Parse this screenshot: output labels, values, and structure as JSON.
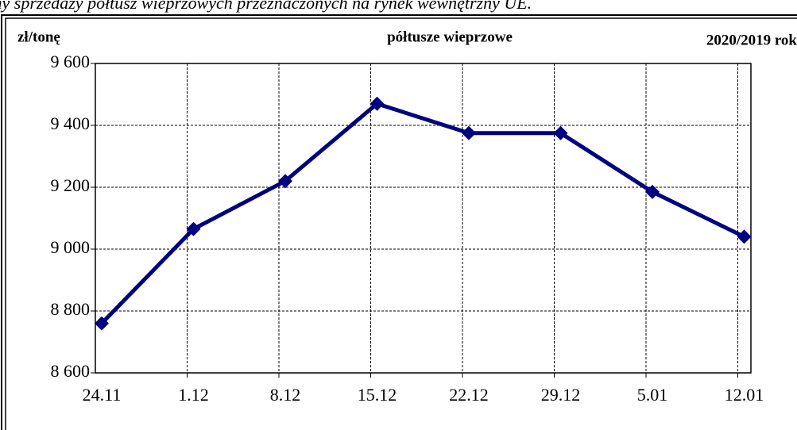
{
  "chart_data": {
    "type": "line",
    "caption": "ceny sprzedaży półtusz wieprzowych przeznaczonych na rynek wewnętrzny UE.",
    "y_label": "zł/tonę",
    "title": "półtusze  wieprzowe",
    "period": "2020/2019 rok",
    "categories": [
      "24.11",
      "1.12",
      "8.12",
      "15.12",
      "22.12",
      "29.12",
      "5.01",
      "12.01"
    ],
    "series": [
      {
        "name": "półtusze wieprzowe",
        "color": "#000080",
        "values": [
          8760,
          9065,
          9220,
          9470,
          9375,
          9375,
          9185,
          9040
        ]
      }
    ],
    "ylim": [
      8600,
      9600
    ],
    "yticks": [
      {
        "value": 8600,
        "label": "8 600"
      },
      {
        "value": 8800,
        "label": "8 800"
      },
      {
        "value": 9000,
        "label": "9 000"
      },
      {
        "value": 9200,
        "label": "9 200"
      },
      {
        "value": 9400,
        "label": "9 400"
      },
      {
        "value": 9600,
        "label": "9 600"
      }
    ],
    "grid": true
  }
}
